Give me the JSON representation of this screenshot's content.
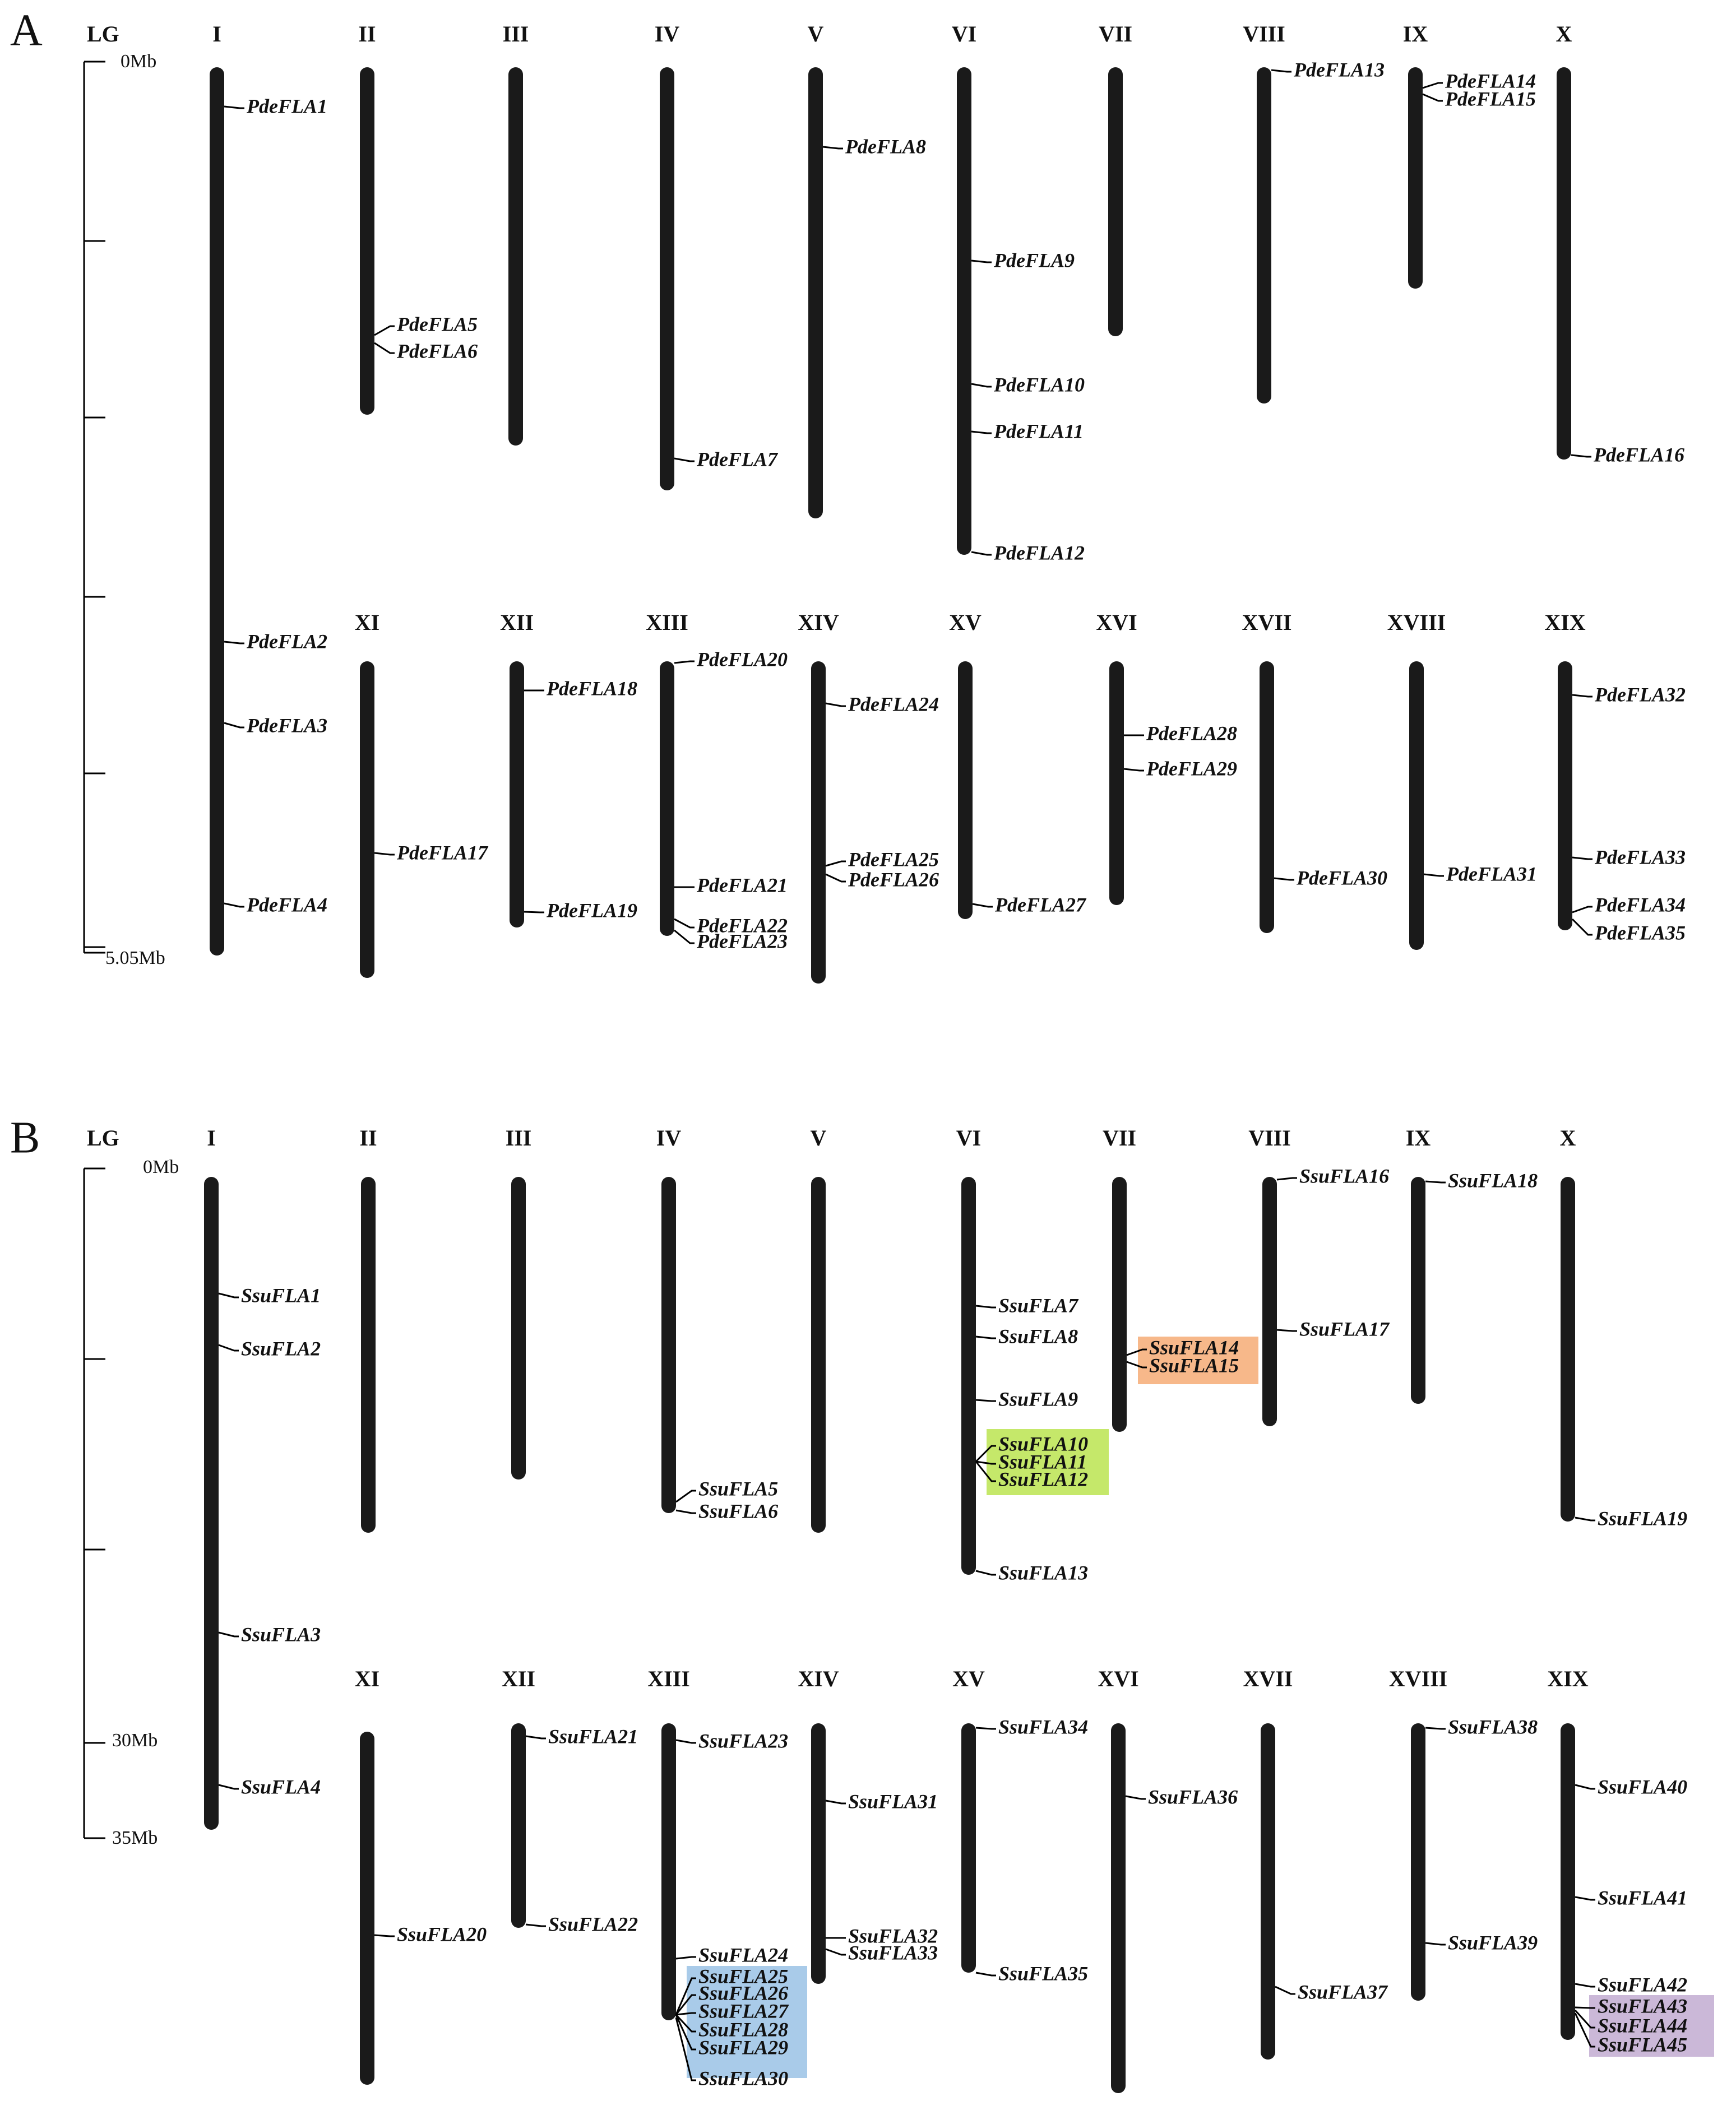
{
  "panels": [
    {
      "id": "A",
      "panel_label": "A",
      "lg_label": "LG",
      "scale_top_label": "0Mb",
      "scale_bottom_label": "5.05Mb",
      "chromosome_labels": [
        "I",
        "II",
        "III",
        "IV",
        "V",
        "VI",
        "VII",
        "VIII",
        "IX",
        "X",
        "XI",
        "XII",
        "XIII",
        "XIV",
        "XV",
        "XVI",
        "XVII",
        "XVIII",
        "XIX"
      ],
      "genes": {
        "I": [
          "PdeFLA1",
          "PdeFLA2",
          "PdeFLA3",
          "PdeFLA4"
        ],
        "II": [
          "PdeFLA5",
          "PdeFLA6"
        ],
        "III": [],
        "IV": [
          "PdeFLA7"
        ],
        "V": [
          "PdeFLA8"
        ],
        "VI": [
          "PdeFLA9",
          "PdeFLA10",
          "PdeFLA11",
          "PdeFLA12"
        ],
        "VII": [],
        "VIII": [
          "PdeFLA13"
        ],
        "IX": [
          "PdeFLA14",
          "PdeFLA15"
        ],
        "X": [
          "PdeFLA16"
        ],
        "XI": [
          "PdeFLA17"
        ],
        "XII": [
          "PdeFLA18",
          "PdeFLA19"
        ],
        "XIII": [
          "PdeFLA20",
          "PdeFLA21",
          "PdeFLA22",
          "PdeFLA23"
        ],
        "XIV": [
          "PdeFLA24",
          "PdeFLA25",
          "PdeFLA26"
        ],
        "XV": [
          "PdeFLA27"
        ],
        "XVI": [
          "PdeFLA28",
          "PdeFLA29"
        ],
        "XVII": [
          "PdeFLA30"
        ],
        "XVIII": [
          "PdeFLA31"
        ],
        "XIX": [
          "PdeFLA32",
          "PdeFLA33",
          "PdeFLA34",
          "PdeFLA35"
        ]
      }
    },
    {
      "id": "B",
      "panel_label": "B",
      "lg_label": "LG",
      "scale_top_label": "0Mb",
      "scale_mid_label": "30Mb",
      "scale_bottom_label": "35Mb",
      "chromosome_labels": [
        "I",
        "II",
        "III",
        "IV",
        "V",
        "VI",
        "VII",
        "VIII",
        "IX",
        "X",
        "XI",
        "XII",
        "XIII",
        "XIV",
        "XV",
        "XVI",
        "XVII",
        "XVIII",
        "XIX"
      ],
      "genes": {
        "I": [
          "SsuFLA1",
          "SsuFLA2",
          "SsuFLA3",
          "SsuFLA4"
        ],
        "II": [],
        "III": [],
        "IV": [
          "SsuFLA5",
          "SsuFLA6"
        ],
        "V": [],
        "VI": [
          "SsuFLA7",
          "SsuFLA8",
          "SsuFLA9",
          "SsuFLA10",
          "SsuFLA11",
          "SsuFLA12",
          "SsuFLA13"
        ],
        "VII": [
          "SsuFLA14",
          "SsuFLA15"
        ],
        "VIII": [
          "SsuFLA16",
          "SsuFLA17"
        ],
        "IX": [
          "SsuFLA18"
        ],
        "X": [
          "SsuFLA19"
        ],
        "XI": [
          "SsuFLA20"
        ],
        "XII": [
          "SsuFLA21",
          "SsuFLA22"
        ],
        "XIII": [
          "SsuFLA23",
          "SsuFLA24",
          "SsuFLA25",
          "SsuFLA26",
          "SsuFLA27",
          "SsuFLA28",
          "SsuFLA29",
          "SsuFLA30"
        ],
        "XIV": [
          "SsuFLA31",
          "SsuFLA32",
          "SsuFLA33"
        ],
        "XV": [
          "SsuFLA34",
          "SsuFLA35"
        ],
        "XVI": [
          "SsuFLA36"
        ],
        "XVII": [
          "SsuFLA37"
        ],
        "XVIII": [
          "SsuFLA38",
          "SsuFLA39"
        ],
        "XIX": [
          "SsuFLA40",
          "SsuFLA41",
          "SsuFLA42",
          "SsuFLA43",
          "SsuFLA44",
          "SsuFLA45"
        ]
      },
      "highlight_colors": {
        "VI_cluster": "#c5e86a",
        "VII_cluster": "#f7b88a",
        "XIII_cluster": "#a9cbe9",
        "XIX_cluster": "#cbb8d8"
      }
    }
  ],
  "colors": {
    "chromosome": "#1a1a1a",
    "text": "#111111",
    "background": "#ffffff"
  }
}
